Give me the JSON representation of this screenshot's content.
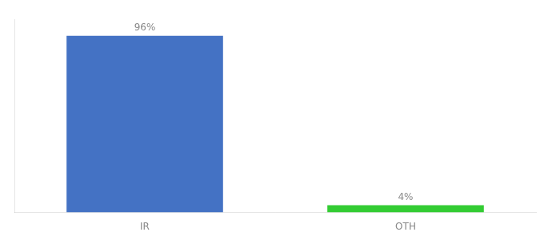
{
  "chart_data": {
    "type": "bar",
    "categories": [
      "IR",
      "OTH"
    ],
    "values": [
      96,
      4
    ],
    "value_labels": [
      "96%",
      "4%"
    ],
    "data_labels": true,
    "colors": [
      "#4472c4",
      "#33cc33"
    ],
    "ylim": [
      0,
      105
    ],
    "grid": false,
    "tick_labels": "x"
  }
}
